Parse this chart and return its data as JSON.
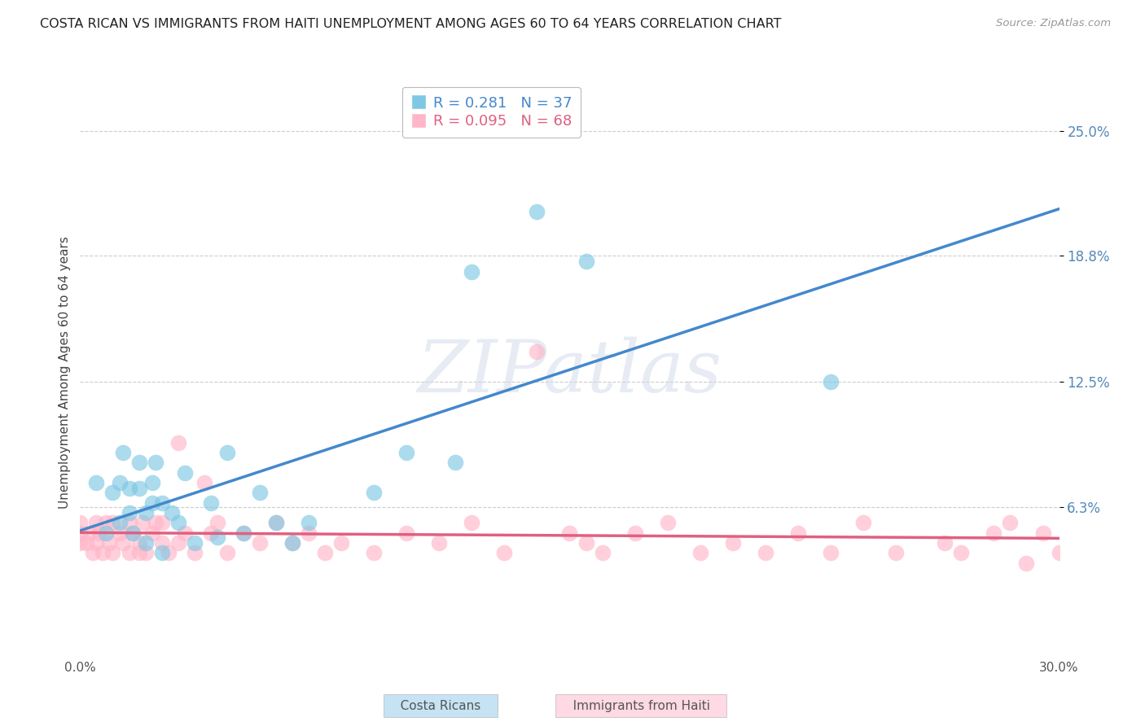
{
  "title": "COSTA RICAN VS IMMIGRANTS FROM HAITI UNEMPLOYMENT AMONG AGES 60 TO 64 YEARS CORRELATION CHART",
  "source": "Source: ZipAtlas.com",
  "ylabel": "Unemployment Among Ages 60 to 64 years",
  "xlim": [
    0.0,
    0.3
  ],
  "ylim": [
    -0.01,
    0.27
  ],
  "ytick_vals": [
    0.063,
    0.125,
    0.188,
    0.25
  ],
  "ytick_labels": [
    "6.3%",
    "12.5%",
    "18.8%",
    "25.0%"
  ],
  "xtick_vals": [
    0.0,
    0.1,
    0.2,
    0.3
  ],
  "xtick_labels": [
    "0.0%",
    "",
    "",
    "30.0%"
  ],
  "costa_rican_R": 0.281,
  "costa_rican_N": 37,
  "haiti_R": 0.095,
  "haiti_N": 68,
  "costa_rican_color": "#7ec8e3",
  "haiti_color": "#ffb6c8",
  "costa_rican_line_color": "#4488cc",
  "haiti_line_color": "#e06080",
  "background_color": "#ffffff",
  "grid_color": "#cccccc",
  "watermark_text": "ZIPatlas",
  "cr_x": [
    0.005,
    0.008,
    0.01,
    0.012,
    0.012,
    0.013,
    0.015,
    0.015,
    0.016,
    0.018,
    0.018,
    0.02,
    0.02,
    0.022,
    0.022,
    0.023,
    0.025,
    0.025,
    0.028,
    0.03,
    0.032,
    0.035,
    0.04,
    0.042,
    0.045,
    0.05,
    0.055,
    0.06,
    0.065,
    0.07,
    0.09,
    0.1,
    0.115,
    0.12,
    0.14,
    0.155,
    0.23
  ],
  "cr_y": [
    0.075,
    0.05,
    0.07,
    0.055,
    0.075,
    0.09,
    0.06,
    0.072,
    0.05,
    0.072,
    0.085,
    0.045,
    0.06,
    0.065,
    0.075,
    0.085,
    0.065,
    0.04,
    0.06,
    0.055,
    0.08,
    0.045,
    0.065,
    0.048,
    0.09,
    0.05,
    0.07,
    0.055,
    0.045,
    0.055,
    0.07,
    0.09,
    0.085,
    0.18,
    0.21,
    0.185,
    0.125
  ],
  "h_x": [
    0.0,
    0.0,
    0.0,
    0.002,
    0.003,
    0.004,
    0.005,
    0.005,
    0.006,
    0.007,
    0.008,
    0.009,
    0.01,
    0.01,
    0.012,
    0.013,
    0.015,
    0.015,
    0.016,
    0.018,
    0.018,
    0.019,
    0.02,
    0.022,
    0.023,
    0.025,
    0.025,
    0.027,
    0.03,
    0.03,
    0.032,
    0.035,
    0.038,
    0.04,
    0.042,
    0.045,
    0.05,
    0.055,
    0.06,
    0.065,
    0.07,
    0.075,
    0.08,
    0.09,
    0.1,
    0.11,
    0.12,
    0.13,
    0.14,
    0.15,
    0.155,
    0.16,
    0.17,
    0.18,
    0.19,
    0.2,
    0.21,
    0.22,
    0.23,
    0.24,
    0.25,
    0.265,
    0.27,
    0.28,
    0.285,
    0.29,
    0.295,
    0.3
  ],
  "h_y": [
    0.045,
    0.05,
    0.055,
    0.045,
    0.05,
    0.04,
    0.045,
    0.055,
    0.05,
    0.04,
    0.055,
    0.045,
    0.055,
    0.04,
    0.05,
    0.045,
    0.04,
    0.055,
    0.05,
    0.045,
    0.04,
    0.055,
    0.04,
    0.05,
    0.055,
    0.045,
    0.055,
    0.04,
    0.045,
    0.095,
    0.05,
    0.04,
    0.075,
    0.05,
    0.055,
    0.04,
    0.05,
    0.045,
    0.055,
    0.045,
    0.05,
    0.04,
    0.045,
    0.04,
    0.05,
    0.045,
    0.055,
    0.04,
    0.14,
    0.05,
    0.045,
    0.04,
    0.05,
    0.055,
    0.04,
    0.045,
    0.04,
    0.05,
    0.04,
    0.055,
    0.04,
    0.045,
    0.04,
    0.05,
    0.055,
    0.035,
    0.05,
    0.04
  ]
}
